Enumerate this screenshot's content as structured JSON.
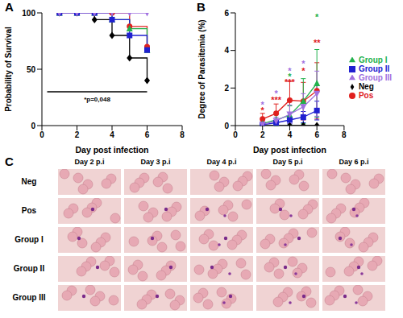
{
  "chart_data": [
    {
      "panel": "A",
      "type": "line",
      "line_style": "step",
      "xlabel": "Day post infection",
      "ylabel": "Probability of Survival",
      "x": [
        1,
        2,
        3,
        4,
        5,
        6
      ],
      "xlim": [
        0,
        8
      ],
      "xticks": [
        0,
        2,
        4,
        6,
        8
      ],
      "ylim": [
        0,
        100
      ],
      "yticks": [
        0,
        50,
        100
      ],
      "grid": false,
      "series": [
        {
          "name": "Neg",
          "color": "#000000",
          "marker": "diamond",
          "values": [
            100,
            100,
            94,
            80,
            60,
            40
          ]
        },
        {
          "name": "Pos",
          "color": "#e0201e",
          "marker": "circle",
          "values": [
            100,
            100,
            100,
            100,
            88,
            70
          ]
        },
        {
          "name": "Group I",
          "color": "#22b14c",
          "marker": "triangle",
          "values": [
            100,
            100,
            100,
            94,
            86,
            67
          ]
        },
        {
          "name": "Group II",
          "color": "#2020d0",
          "marker": "square",
          "values": [
            100,
            100,
            100,
            94,
            80,
            67
          ]
        },
        {
          "name": "Group III",
          "color": "#a070e0",
          "marker": "triangle-down",
          "values": [
            100,
            100,
            100,
            100,
            100,
            100
          ]
        }
      ],
      "annotation": {
        "text": "*p=0,048",
        "x": [
          0.3,
          6
        ],
        "y": 30
      }
    },
    {
      "panel": "B",
      "type": "line",
      "line_style": "solid",
      "xlabel": "Day post infection",
      "ylabel": "Degree of Parasitemia (%)",
      "x": [
        2,
        3,
        4,
        5,
        6
      ],
      "xlim": [
        0,
        8
      ],
      "xticks": [
        0,
        2,
        4,
        6,
        8
      ],
      "ylim": [
        0,
        6
      ],
      "yticks": [
        0,
        2,
        4,
        6
      ],
      "grid": false,
      "legend": "right",
      "series": [
        {
          "name": "Neg",
          "color": "#000000",
          "marker": "diamond",
          "values": [
            0,
            0,
            0,
            0,
            0
          ],
          "errors": [
            0,
            0,
            0,
            0,
            0
          ]
        },
        {
          "name": "Pos",
          "color": "#e0201e",
          "marker": "circle",
          "values": [
            0.35,
            0.65,
            1.35,
            1.3,
            1.85
          ],
          "errors": [
            0.3,
            0.5,
            1.0,
            1.0,
            1.5
          ]
        },
        {
          "name": "Group I",
          "color": "#22b14c",
          "marker": "triangle",
          "values": [
            0.1,
            0.3,
            0.55,
            1.3,
            2.25
          ],
          "errors": [
            0.1,
            0.3,
            0.5,
            1.2,
            1.8
          ]
        },
        {
          "name": "Group II",
          "color": "#2020d0",
          "marker": "square",
          "values": [
            0.05,
            0.15,
            0.3,
            0.45,
            0.8
          ],
          "errors": [
            0.05,
            0.1,
            0.2,
            0.3,
            0.5
          ]
        },
        {
          "name": "Group III",
          "color": "#a070e0",
          "marker": "triangle-down",
          "values": [
            0.05,
            0.25,
            0.6,
            1.0,
            1.7
          ],
          "errors": [
            0.05,
            0.2,
            0.5,
            0.7,
            1.2
          ]
        }
      ],
      "annotations": [
        {
          "x": 2,
          "y": 1.1,
          "text": "*",
          "color": "#a070e0"
        },
        {
          "x": 2,
          "y": 0.8,
          "text": "*",
          "color": "#e0201e"
        },
        {
          "x": 3,
          "y": 1.7,
          "text": "*",
          "color": "#a070e0"
        },
        {
          "x": 3,
          "y": 1.35,
          "text": "***",
          "color": "#e0201e"
        },
        {
          "x": 4,
          "y": 2.9,
          "text": "*",
          "color": "#a070e0"
        },
        {
          "x": 4,
          "y": 2.6,
          "text": "*",
          "color": "#22b14c"
        },
        {
          "x": 4,
          "y": 2.3,
          "text": "***",
          "color": "#e0201e"
        },
        {
          "x": 5,
          "y": 3.3,
          "text": "*",
          "color": "#a070e0"
        },
        {
          "x": 5,
          "y": 2.9,
          "text": "*",
          "color": "#e0201e"
        },
        {
          "x": 6,
          "y": 5.8,
          "text": "*",
          "color": "#22b14c"
        },
        {
          "x": 6,
          "y": 4.4,
          "text": "**",
          "color": "#e0201e"
        }
      ]
    }
  ],
  "image_grid": {
    "panel": "C",
    "columns": [
      "Day 2 p.i",
      "Day 3 p.i",
      "Day 4 p.i",
      "Day 5 p.i",
      "Day 6 p.i"
    ],
    "rows": [
      "Neg",
      "Pos",
      "Group I",
      "Group II",
      "Group III"
    ]
  }
}
